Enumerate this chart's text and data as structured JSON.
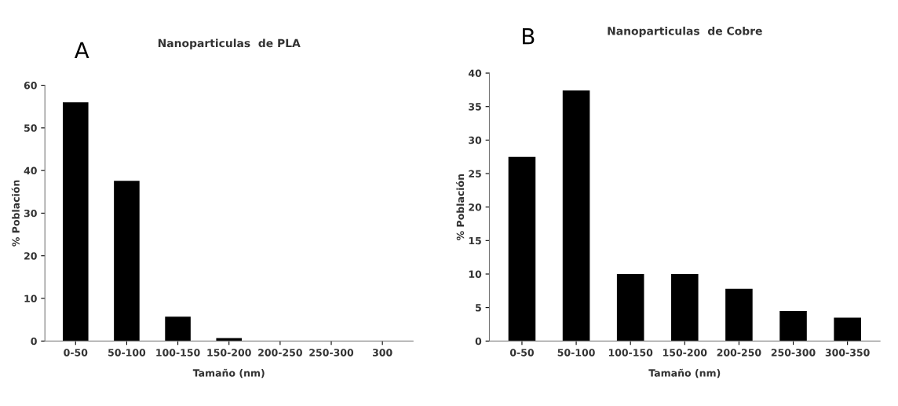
{
  "chart_data": [
    {
      "type": "bar",
      "title": "Nanoparticulas  de PLA",
      "annotations": [
        "A"
      ],
      "xlabel": "Tamaño (nm)",
      "ylabel": "% Población",
      "categories": [
        "0-50",
        "50-100",
        "100-150",
        "150-200",
        "200-250",
        "250-300",
        "300"
      ],
      "values": [
        56,
        37.6,
        5.7,
        0.7,
        0,
        0,
        0
      ],
      "color": "#000000",
      "ylim": [
        0,
        60
      ],
      "yticks": [
        0,
        10,
        20,
        30,
        40,
        50,
        60
      ],
      "grid": false
    },
    {
      "type": "bar",
      "title": "Nanoparticulas  de Cobre",
      "annotations": [
        "B"
      ],
      "xlabel": "Tamaño (nm)",
      "ylabel": "% Población",
      "categories": [
        "0-50",
        "50-100",
        "100-150",
        "150-200",
        "200-250",
        "250-300",
        "300-350"
      ],
      "values": [
        27.5,
        37.4,
        10.0,
        10.0,
        7.8,
        4.5,
        3.5
      ],
      "color": "#000000",
      "ylim": [
        0,
        40
      ],
      "yticks": [
        0,
        5,
        10,
        15,
        20,
        25,
        30,
        35,
        40
      ],
      "grid": false
    }
  ]
}
